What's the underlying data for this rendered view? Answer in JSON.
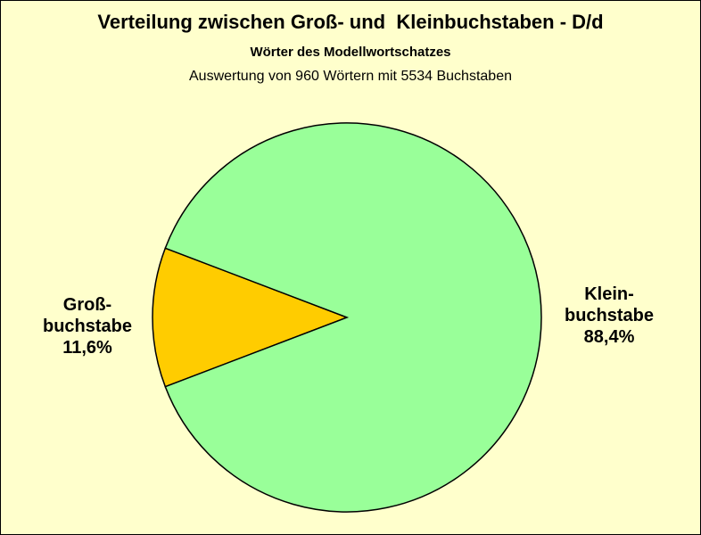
{
  "chart_data": {
    "type": "pie",
    "title": "Verteilung zwischen Groß- und  Kleinbuchstaben - D/d",
    "subtitle": "Wörter des Modellwortschatzes",
    "caption": "Auswertung von 960 Wörtern mit 5534 Buchstaben",
    "slices": [
      {
        "label_lines": [
          "Groß-",
          "buchstabe"
        ],
        "percent_label": "11,6%",
        "value": 11.6,
        "color": "#ffcc00"
      },
      {
        "label_lines": [
          "Klein-",
          "buchstabe"
        ],
        "percent_label": "88,4%",
        "value": 88.4,
        "color": "#99ff99"
      }
    ],
    "background_color": "#ffffcc",
    "border_color": "#000000"
  }
}
